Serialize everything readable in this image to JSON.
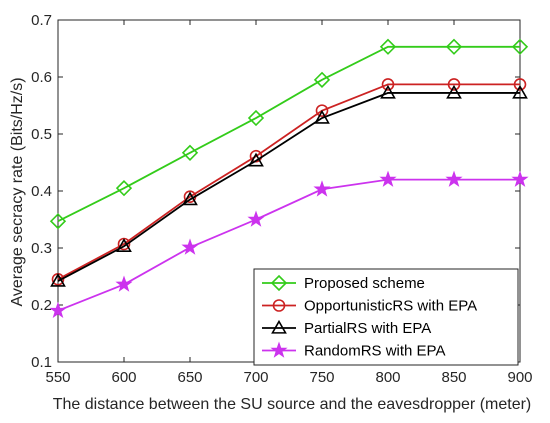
{
  "chart_data": {
    "type": "line",
    "title": "",
    "xlabel": "The distance between the SU source and the eavesdropper (meter)",
    "ylabel": "Average secracy rate (Bits/Hz/s)",
    "x": [
      550,
      600,
      650,
      700,
      750,
      800,
      850,
      900
    ],
    "xlim": [
      550,
      900
    ],
    "ylim": [
      0.1,
      0.7
    ],
    "xticks": [
      "550",
      "600",
      "650",
      "700",
      "750",
      "800",
      "850",
      "900"
    ],
    "yticks": [
      "0.1",
      "0.2",
      "0.3",
      "0.4",
      "0.5",
      "0.6",
      "0.7"
    ],
    "grid": false,
    "legend_position": "bottom-right",
    "series": [
      {
        "name": "Proposed scheme",
        "color": "#33cc1a",
        "marker": "diamond",
        "values": [
          0.347,
          0.405,
          0.467,
          0.528,
          0.595,
          0.653,
          0.653,
          0.653
        ]
      },
      {
        "name": "OpportunisticRS with EPA",
        "color": "#cc2222",
        "marker": "circle",
        "values": [
          0.245,
          0.307,
          0.39,
          0.461,
          0.541,
          0.587,
          0.587,
          0.587
        ]
      },
      {
        "name": "PartialRS with EPA",
        "color": "#000000",
        "marker": "triangle",
        "values": [
          0.242,
          0.303,
          0.385,
          0.453,
          0.528,
          0.572,
          0.572,
          0.572
        ]
      },
      {
        "name": "RandomRS with EPA",
        "color": "#cc33ee",
        "marker": "star",
        "values": [
          0.19,
          0.236,
          0.301,
          0.35,
          0.403,
          0.42,
          0.42,
          0.42
        ]
      }
    ]
  }
}
